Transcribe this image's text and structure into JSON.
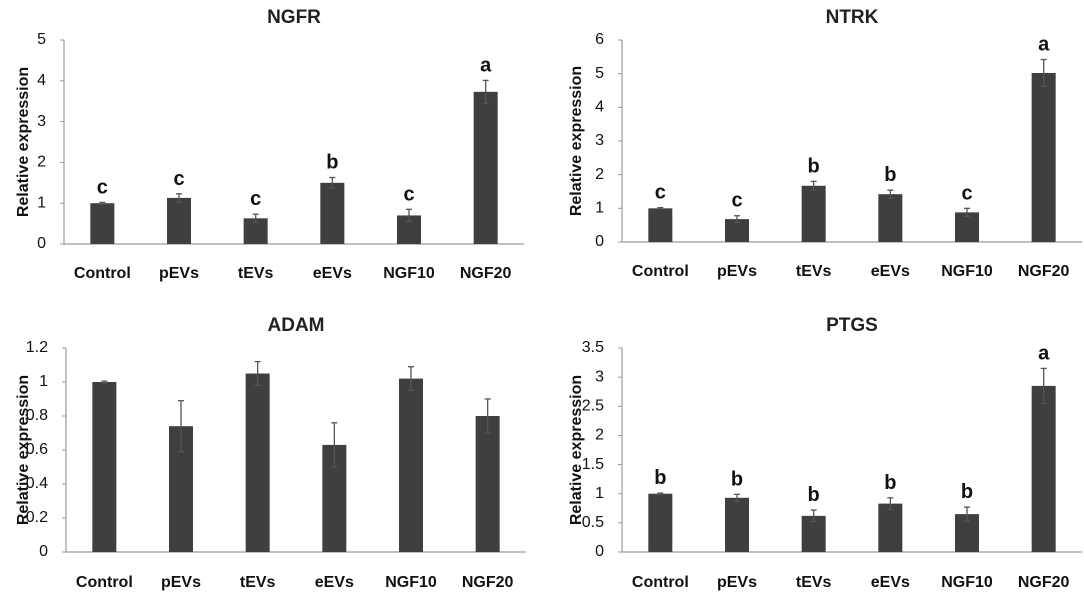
{
  "chart_data": [
    {
      "type": "bar",
      "title": "NGFR",
      "ylabel": "Relative expression",
      "xlabel": "",
      "categories": [
        "Control",
        "pEVs",
        "tEVs",
        "eEVs",
        "NGF10",
        "NGF20"
      ],
      "values": [
        1.0,
        1.13,
        0.63,
        1.5,
        0.7,
        3.73
      ],
      "errors": [
        0.02,
        0.1,
        0.1,
        0.13,
        0.15,
        0.28
      ],
      "labels": [
        "c",
        "c",
        "c",
        "b",
        "c",
        "a"
      ],
      "ylim": [
        0,
        5
      ],
      "yticks": [
        "0",
        "1",
        "2",
        "3",
        "4",
        "5"
      ]
    },
    {
      "type": "bar",
      "title": "NTRK",
      "ylabel": "Relative expression",
      "xlabel": "",
      "categories": [
        "Control",
        "pEVs",
        "tEVs",
        "eEVs",
        "NGF10",
        "NGF20"
      ],
      "values": [
        1.0,
        0.68,
        1.67,
        1.42,
        0.88,
        5.02
      ],
      "errors": [
        0.02,
        0.1,
        0.13,
        0.12,
        0.12,
        0.4
      ],
      "labels": [
        "c",
        "c",
        "b",
        "b",
        "c",
        "a"
      ],
      "ylim": [
        0,
        6
      ],
      "yticks": [
        "0",
        "1",
        "2",
        "3",
        "4",
        "5",
        "6"
      ]
    },
    {
      "type": "bar",
      "title": "ADAM",
      "ylabel": "Relative expression",
      "xlabel": "",
      "categories": [
        "Control",
        "pEVs",
        "tEVs",
        "eEVs",
        "NGF10",
        "NGF20"
      ],
      "values": [
        1.0,
        0.74,
        1.05,
        0.63,
        1.02,
        0.8
      ],
      "errors": [
        0.005,
        0.15,
        0.07,
        0.13,
        0.07,
        0.1
      ],
      "labels": [
        "",
        "",
        "",
        "",
        "",
        ""
      ],
      "ylim": [
        0,
        1.2
      ],
      "yticks": [
        "0",
        "0.2",
        "0.4",
        "0.6",
        "0.8",
        "1",
        "1.2"
      ]
    },
    {
      "type": "bar",
      "title": "PTGS",
      "ylabel": "Relative expression",
      "xlabel": "",
      "categories": [
        "Control",
        "pEVs",
        "tEVs",
        "eEVs",
        "NGF10",
        "NGF20"
      ],
      "values": [
        1.0,
        0.93,
        0.62,
        0.83,
        0.65,
        2.85
      ],
      "errors": [
        0.01,
        0.06,
        0.1,
        0.1,
        0.12,
        0.3
      ],
      "labels": [
        "b",
        "b",
        "b",
        "b",
        "b",
        "a"
      ],
      "ylim": [
        0,
        3.5
      ],
      "yticks": [
        "0",
        "0.5",
        "1",
        "1.5",
        "2",
        "2.5",
        "3",
        "3.5"
      ]
    }
  ]
}
